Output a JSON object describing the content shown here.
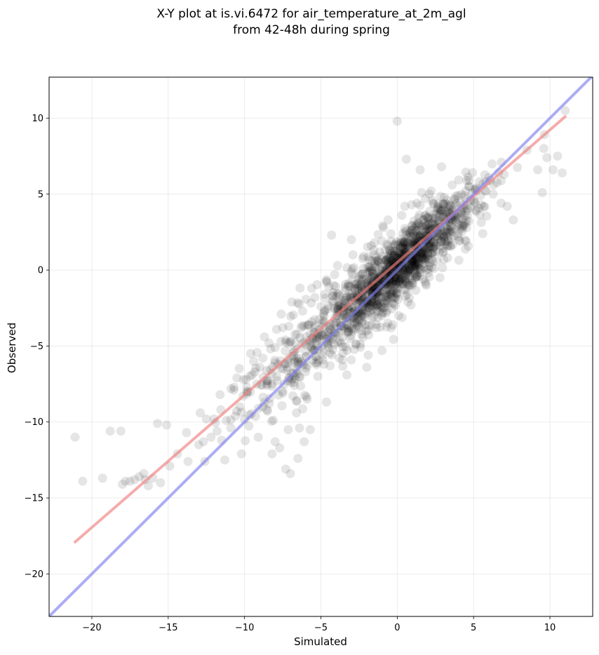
{
  "chart_data": {
    "type": "scatter",
    "title_line1": "X-Y plot at is.vi.6472 for air_temperature_at_2m_agl",
    "title_line2": "from 42-48h during spring",
    "xlabel": "Simulated",
    "ylabel": "Observed",
    "xlim": [
      -22.8,
      12.8
    ],
    "ylim": [
      -22.8,
      12.7
    ],
    "xticks": [
      -20,
      -15,
      -10,
      -5,
      0,
      5,
      10
    ],
    "yticks": [
      -20,
      -15,
      -10,
      -5,
      0,
      5,
      10
    ],
    "xtick_labels": [
      "−20",
      "−15",
      "−10",
      "−5",
      "0",
      "5",
      "10"
    ],
    "ytick_labels": [
      "−20",
      "−15",
      "−10",
      "−5",
      "0",
      "5",
      "10"
    ],
    "grid": true,
    "point_color": "#000000",
    "point_alpha": 0.1,
    "regression_color": "#f08080",
    "identity_color": "#8080f0",
    "regression_line": {
      "x": [
        -21.1,
        11.0
      ],
      "y": [
        -17.9,
        10.1
      ]
    },
    "identity_line": {
      "x": [
        -22.8,
        12.8
      ],
      "y": [
        -22.8,
        12.8
      ]
    },
    "points": {
      "x": [
        -21.1,
        -20.6,
        -19.3,
        -18.8,
        -18.1,
        -18.0,
        -17.8,
        -17.5,
        -17.2,
        -16.9,
        -16.6,
        -16.5,
        -16.3,
        -16.0,
        -15.7,
        -15.5,
        -15.1,
        -14.9,
        -14.4,
        -13.7,
        -13.0,
        -12.7,
        -12.5,
        -12.2,
        -12.0,
        -11.8,
        -11.5,
        -11.2,
        -10.9,
        -10.6,
        -10.3,
        -10.1,
        -9.9,
        -9.8,
        -9.5,
        -9.2,
        -9.0,
        -8.8,
        -8.5,
        -8.2,
        -8.0,
        -7.8,
        -7.5,
        -7.2,
        -7.0,
        -6.8,
        -6.5,
        -6.3,
        -6.0,
        -5.8,
        -5.5,
        -5.2,
        -5.0,
        -4.8,
        -4.5,
        -4.2,
        -4.0,
        -3.8,
        -3.5,
        -3.2,
        -3.0,
        -2.8,
        -2.5,
        -2.2,
        -2.0,
        -1.8,
        -1.5,
        -1.2,
        -1.0,
        -0.8,
        -0.5,
        -0.2,
        0.0,
        0.2,
        0.5,
        0.8,
        1.0,
        1.2,
        1.5,
        1.8,
        2.0,
        2.2,
        2.5,
        2.8,
        3.0,
        3.2,
        3.5,
        3.8,
        4.0,
        4.2,
        4.5,
        4.8,
        5.0,
        5.2,
        5.5,
        5.8,
        6.0,
        6.3,
        6.8,
        7.2,
        7.6,
        8.5,
        9.2,
        9.5,
        9.6,
        9.8,
        10.2,
        10.5,
        10.8,
        11.0,
        0.0,
        0.6,
        1.5,
        2.9,
        -0.2,
        -1.2,
        -2.5,
        -3.5,
        -4.8,
        -5.2,
        -6.4,
        -7.3,
        -8.0,
        -9.1,
        -10.2,
        -11.3,
        -12.6,
        -3.1,
        -1.9,
        -0.4,
        0.9,
        1.7,
        2.4,
        3.3,
        4.1,
        5.6,
        -6.6,
        -5.9,
        -4.4,
        -3.8,
        -2.7,
        -1.3,
        -0.7,
        0.4,
        1.1,
        2.6,
        -8.7,
        -7.9,
        -9.6,
        -10.7,
        -4.1,
        -2.2,
        -1.5,
        -0.9,
        0.3,
        1.3,
        2.1,
        3.6,
        4.7,
        -5.6,
        -6.9,
        -7.6,
        -3.3,
        -2.0,
        -1.0,
        0.1,
        0.7,
        1.9,
        2.8,
        -0.6,
        0.5,
        1.6,
        -1.7,
        -2.9,
        -3.9,
        -4.6,
        -5.4,
        -6.2,
        -7.1,
        -8.4,
        -9.4,
        -10.5,
        -11.6,
        -12.9,
        -13.8,
        -0.3,
        0.6,
        1.4,
        2.2,
        3.1,
        -1.1,
        -2.3,
        -3.6,
        -4.9,
        -6.0,
        -7.4,
        -8.8,
        -5.7,
        -6.1,
        -6.5,
        -7.0,
        -7.7,
        -8.2,
        -4.3,
        -3.0,
        -2.6,
        -1.6,
        -0.8,
        0.2,
        0.9,
        1.8,
        2.7,
        3.4,
        4.4,
        5.1,
        6.1,
        7.0
      ],
      "y": [
        -11.0,
        -13.9,
        -13.7,
        -10.6,
        -10.6,
        -14.1,
        -13.9,
        -13.9,
        -13.8,
        -13.6,
        -13.4,
        -13.8,
        -14.2,
        -13.7,
        -10.1,
        -14.0,
        -10.2,
        -12.9,
        -12.1,
        -12.6,
        -11.5,
        -11.3,
        -9.8,
        -11.0,
        -9.8,
        -10.6,
        -11.2,
        -9.9,
        -10.4,
        -9.6,
        -9.0,
        -8.3,
        -7.2,
        -8.0,
        -6.9,
        -7.5,
        -6.4,
        -5.8,
        -7.3,
        -6.8,
        -5.1,
        -6.2,
        -8.1,
        -6.6,
        -4.7,
        -5.4,
        -6.0,
        -3.8,
        -4.9,
        -3.6,
        -5.3,
        -4.2,
        -2.4,
        -3.0,
        -4.1,
        -2.1,
        -3.4,
        -1.7,
        -2.5,
        -0.9,
        -2.8,
        -1.2,
        -0.4,
        -1.9,
        -0.8,
        0.2,
        -1.1,
        0.5,
        0.9,
        -0.3,
        1.3,
        0.4,
        0.8,
        1.8,
        1.2,
        2.4,
        1.6,
        2.9,
        2.2,
        3.1,
        2.6,
        1.9,
        3.4,
        2.8,
        3.7,
        2.5,
        4.2,
        3.3,
        4.9,
        3.8,
        5.2,
        4.1,
        4.6,
        5.4,
        4.3,
        5.8,
        6.1,
        5.6,
        4.4,
        4.2,
        3.3,
        7.9,
        6.6,
        5.1,
        8.0,
        7.4,
        6.6,
        7.5,
        6.4,
        10.5,
        9.8,
        7.3,
        6.6,
        6.8,
        1.0,
        -0.5,
        -3.3,
        -2.9,
        -6.2,
        -7.0,
        -10.4,
        -13.1,
        -11.3,
        -11.0,
        -12.1,
        -12.5,
        -12.6,
        -4.5,
        -5.6,
        -3.8,
        -2.3,
        -0.6,
        0.1,
        0.8,
        1.9,
        2.4,
        -9.4,
        -8.5,
        -6.3,
        -5.8,
        -4.9,
        -2.7,
        -1.9,
        -0.9,
        0.0,
        0.6,
        -4.4,
        -3.9,
        -5.5,
        -7.9,
        -0.3,
        0.9,
        1.8,
        2.8,
        3.6,
        4.4,
        5.0,
        5.6,
        5.9,
        -1.2,
        -2.1,
        -2.9,
        -6.9,
        -6.4,
        -5.3,
        -3.0,
        -2.1,
        -1.0,
        -0.5,
        3.3,
        4.2,
        5.1,
        1.6,
        1.0,
        0.3,
        -0.8,
        -1.8,
        -2.7,
        -3.7,
        -4.8,
        -6.0,
        -7.1,
        -8.2,
        -9.4,
        -10.7,
        -3.6,
        -1.3,
        0.4,
        1.1,
        2.0,
        -2.3,
        -3.4,
        -4.4,
        -5.6,
        -6.7,
        -7.5,
        -9.0,
        -10.5,
        -11.3,
        -12.4,
        -13.4,
        -11.7,
        -12.1,
        2.3,
        2.0,
        -0.9,
        -0.2,
        0.6,
        1.5,
        2.2,
        2.8,
        3.2,
        4.0,
        4.9,
        5.3,
        5.9,
        6.3
      ]
    }
  }
}
